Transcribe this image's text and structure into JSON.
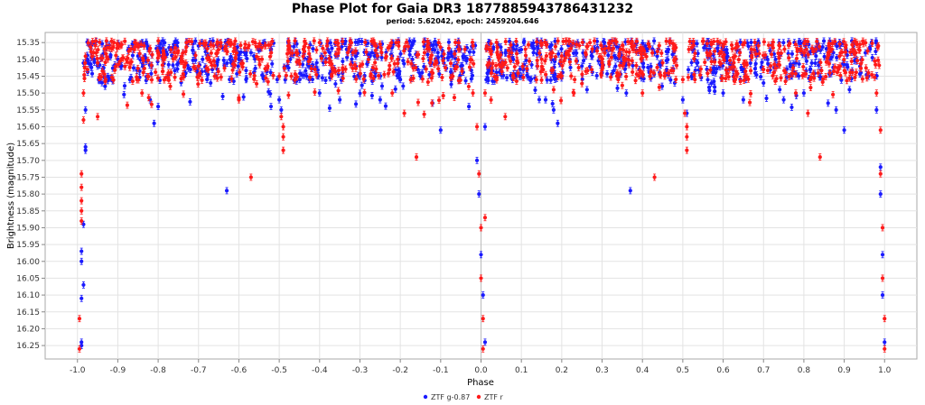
{
  "chart_data": {
    "type": "scatter",
    "title": "Phase Plot for Gaia DR3 1877885943786431232",
    "subtitle": "period: 5.62042, epoch: 2459204.646",
    "xlabel": "Phase",
    "ylabel": "Brightness (magnitude)",
    "xlim": [
      -1.08,
      1.08
    ],
    "ylim": [
      16.29,
      15.32
    ],
    "y_inverted": true,
    "x_ticks": [
      "-1.0",
      "-0.9",
      "-0.8",
      "-0.7",
      "-0.6",
      "-0.5",
      "-0.4",
      "-0.3",
      "-0.2",
      "-0.1",
      "0.0",
      "0.1",
      "0.2",
      "0.3",
      "0.4",
      "0.5",
      "0.6",
      "0.7",
      "0.8",
      "0.9",
      "1.0"
    ],
    "y_ticks": [
      "15.35",
      "15.40",
      "15.45",
      "15.50",
      "15.55",
      "15.60",
      "15.65",
      "15.70",
      "15.75",
      "15.80",
      "15.85",
      "15.90",
      "15.95",
      "16.00",
      "16.05",
      "16.10",
      "16.15",
      "16.20",
      "16.25"
    ],
    "grid": true,
    "legend_position": "bottom-center",
    "series": [
      {
        "name": "ZTF g-0.87",
        "color": "#1a1aff",
        "points": [
          [
            -0.99,
            16.25
          ],
          [
            -0.99,
            16.24
          ],
          [
            -0.99,
            16.11
          ],
          [
            -0.985,
            16.07
          ],
          [
            -0.99,
            16.0
          ],
          [
            -0.99,
            15.97
          ],
          [
            -0.985,
            15.89
          ],
          [
            -0.98,
            15.67
          ],
          [
            -0.98,
            15.66
          ],
          [
            -0.98,
            15.55
          ],
          [
            -0.975,
            15.4
          ],
          [
            -0.97,
            15.36
          ],
          [
            -0.965,
            15.38
          ],
          [
            -0.95,
            15.42
          ],
          [
            -0.93,
            15.37
          ],
          [
            -0.9,
            15.4
          ],
          [
            -0.87,
            15.46
          ],
          [
            -0.85,
            15.39
          ],
          [
            -0.82,
            15.52
          ],
          [
            -0.8,
            15.54
          ],
          [
            -0.81,
            15.59
          ],
          [
            -0.78,
            15.38
          ],
          [
            -0.75,
            15.41
          ],
          [
            -0.72,
            15.43
          ],
          [
            -0.7,
            15.36
          ],
          [
            -0.67,
            15.47
          ],
          [
            -0.64,
            15.51
          ],
          [
            -0.63,
            15.79
          ],
          [
            -0.6,
            15.4
          ],
          [
            -0.57,
            15.38
          ],
          [
            -0.54,
            15.45
          ],
          [
            -0.52,
            15.37
          ],
          [
            -0.505,
            15.46
          ],
          [
            -0.5,
            15.52
          ],
          [
            -0.495,
            15.55
          ],
          [
            -0.48,
            15.42
          ],
          [
            -0.45,
            15.38
          ],
          [
            -0.43,
            15.4
          ],
          [
            -0.4,
            15.5
          ],
          [
            -0.38,
            15.37
          ],
          [
            -0.35,
            15.52
          ],
          [
            -0.32,
            15.41
          ],
          [
            -0.3,
            15.45
          ],
          [
            -0.27,
            15.38
          ],
          [
            -0.25,
            15.52
          ],
          [
            -0.22,
            15.39
          ],
          [
            -0.2,
            15.46
          ],
          [
            -0.17,
            15.4
          ],
          [
            -0.15,
            15.45
          ],
          [
            -0.12,
            15.53
          ],
          [
            -0.1,
            15.61
          ],
          [
            -0.08,
            15.38
          ],
          [
            -0.05,
            15.42
          ],
          [
            -0.03,
            15.54
          ],
          [
            -0.01,
            15.7
          ],
          [
            -0.005,
            15.8
          ],
          [
            0.0,
            15.98
          ],
          [
            0.005,
            16.1
          ],
          [
            0.01,
            16.24
          ],
          [
            0.01,
            15.6
          ],
          [
            0.02,
            15.4
          ],
          [
            0.03,
            15.37
          ],
          [
            0.05,
            15.41
          ],
          [
            0.08,
            15.4
          ],
          [
            0.1,
            15.45
          ],
          [
            0.13,
            15.38
          ],
          [
            0.16,
            15.52
          ],
          [
            0.18,
            15.55
          ],
          [
            0.19,
            15.59
          ],
          [
            0.22,
            15.4
          ],
          [
            0.25,
            15.42
          ],
          [
            0.28,
            15.37
          ],
          [
            0.3,
            15.44
          ],
          [
            0.33,
            15.39
          ],
          [
            0.36,
            15.5
          ],
          [
            0.37,
            15.79
          ],
          [
            0.4,
            15.41
          ],
          [
            0.43,
            15.38
          ],
          [
            0.46,
            15.43
          ],
          [
            0.48,
            15.47
          ],
          [
            0.5,
            15.52
          ],
          [
            0.51,
            15.56
          ],
          [
            0.53,
            15.4
          ],
          [
            0.56,
            15.37
          ],
          [
            0.6,
            15.5
          ],
          [
            0.62,
            15.42
          ],
          [
            0.65,
            15.52
          ],
          [
            0.68,
            15.38
          ],
          [
            0.7,
            15.47
          ],
          [
            0.73,
            15.4
          ],
          [
            0.75,
            15.52
          ],
          [
            0.78,
            15.41
          ],
          [
            0.8,
            15.5
          ],
          [
            0.83,
            15.39
          ],
          [
            0.86,
            15.53
          ],
          [
            0.88,
            15.55
          ],
          [
            0.9,
            15.61
          ],
          [
            0.93,
            15.4
          ],
          [
            0.96,
            15.45
          ],
          [
            0.98,
            15.55
          ],
          [
            0.99,
            15.72
          ],
          [
            0.99,
            15.8
          ],
          [
            0.995,
            15.98
          ],
          [
            0.995,
            16.1
          ],
          [
            1.0,
            16.24
          ]
        ]
      },
      {
        "name": "ZTF r",
        "color": "#ff1a1a",
        "points": [
          [
            -0.995,
            16.26
          ],
          [
            -0.995,
            16.17
          ],
          [
            -0.99,
            15.88
          ],
          [
            -0.99,
            15.85
          ],
          [
            -0.99,
            15.82
          ],
          [
            -0.99,
            15.78
          ],
          [
            -0.99,
            15.74
          ],
          [
            -0.985,
            15.58
          ],
          [
            -0.985,
            15.5
          ],
          [
            -0.975,
            15.43
          ],
          [
            -0.96,
            15.38
          ],
          [
            -0.95,
            15.57
          ],
          [
            -0.93,
            15.46
          ],
          [
            -0.9,
            15.36
          ],
          [
            -0.87,
            15.41
          ],
          [
            -0.84,
            15.5
          ],
          [
            -0.8,
            15.38
          ],
          [
            -0.77,
            15.48
          ],
          [
            -0.73,
            15.35
          ],
          [
            -0.7,
            15.42
          ],
          [
            -0.66,
            15.45
          ],
          [
            -0.62,
            15.35
          ],
          [
            -0.6,
            15.52
          ],
          [
            -0.57,
            15.75
          ],
          [
            -0.55,
            15.4
          ],
          [
            -0.52,
            15.38
          ],
          [
            -0.5,
            15.45
          ],
          [
            -0.495,
            15.57
          ],
          [
            -0.49,
            15.6
          ],
          [
            -0.49,
            15.63
          ],
          [
            -0.49,
            15.67
          ],
          [
            -0.47,
            15.45
          ],
          [
            -0.44,
            15.37
          ],
          [
            -0.4,
            15.35
          ],
          [
            -0.37,
            15.45
          ],
          [
            -0.33,
            15.38
          ],
          [
            -0.3,
            15.42
          ],
          [
            -0.26,
            15.36
          ],
          [
            -0.22,
            15.5
          ],
          [
            -0.19,
            15.56
          ],
          [
            -0.16,
            15.69
          ],
          [
            -0.14,
            15.38
          ],
          [
            -0.11,
            15.41
          ],
          [
            -0.07,
            15.45
          ],
          [
            -0.04,
            15.37
          ],
          [
            -0.02,
            15.5
          ],
          [
            -0.01,
            15.6
          ],
          [
            -0.005,
            15.74
          ],
          [
            0.0,
            15.9
          ],
          [
            0.0,
            16.05
          ],
          [
            0.005,
            16.17
          ],
          [
            0.005,
            16.26
          ],
          [
            0.01,
            15.87
          ],
          [
            0.01,
            15.5
          ],
          [
            0.02,
            15.41
          ],
          [
            0.04,
            15.38
          ],
          [
            0.06,
            15.57
          ],
          [
            0.08,
            15.45
          ],
          [
            0.11,
            15.37
          ],
          [
            0.14,
            15.42
          ],
          [
            0.18,
            15.49
          ],
          [
            0.2,
            15.39
          ],
          [
            0.23,
            15.5
          ],
          [
            0.27,
            15.35
          ],
          [
            0.3,
            15.43
          ],
          [
            0.34,
            15.46
          ],
          [
            0.38,
            15.36
          ],
          [
            0.4,
            15.5
          ],
          [
            0.43,
            15.75
          ],
          [
            0.45,
            15.41
          ],
          [
            0.48,
            15.37
          ],
          [
            0.5,
            15.46
          ],
          [
            0.505,
            15.56
          ],
          [
            0.51,
            15.6
          ],
          [
            0.51,
            15.63
          ],
          [
            0.51,
            15.67
          ],
          [
            0.53,
            15.46
          ],
          [
            0.56,
            15.38
          ],
          [
            0.6,
            15.36
          ],
          [
            0.63,
            15.46
          ],
          [
            0.67,
            15.37
          ],
          [
            0.7,
            15.43
          ],
          [
            0.74,
            15.36
          ],
          [
            0.78,
            15.5
          ],
          [
            0.81,
            15.56
          ],
          [
            0.84,
            15.69
          ],
          [
            0.86,
            15.38
          ],
          [
            0.89,
            15.42
          ],
          [
            0.93,
            15.35
          ],
          [
            0.96,
            15.44
          ],
          [
            0.98,
            15.5
          ],
          [
            0.99,
            15.61
          ],
          [
            0.99,
            15.74
          ],
          [
            0.995,
            15.9
          ],
          [
            0.995,
            16.05
          ],
          [
            1.0,
            16.17
          ],
          [
            1.0,
            16.26
          ]
        ]
      }
    ],
    "band_points": {
      "ZTF g-0.87": "dense scatter between magnitudes 15.34 and 15.47 across all phases",
      "ZTF r": "dense scatter between magnitudes 15.34 and 15.47 across all phases"
    }
  }
}
